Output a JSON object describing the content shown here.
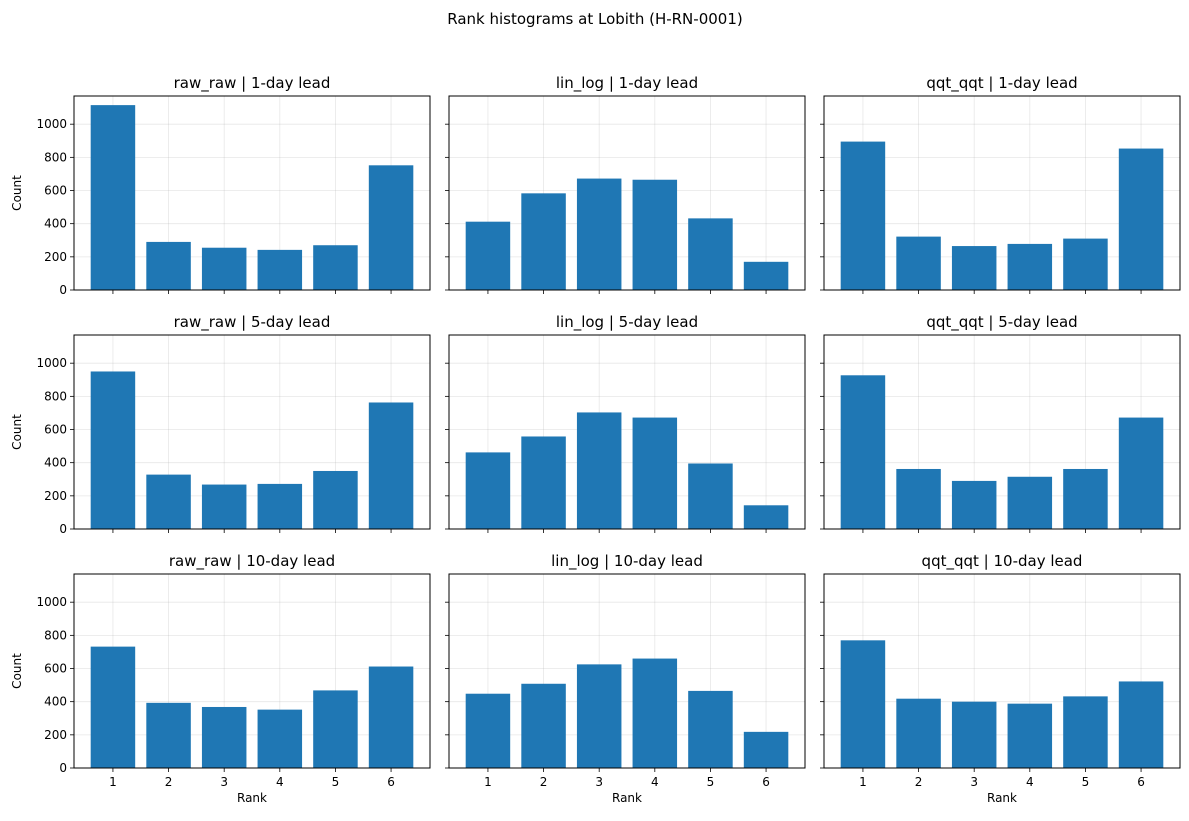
{
  "figure": {
    "suptitle": "Rank histograms at Lobith (H-RN-0001)"
  },
  "style": {
    "bar_color": "#1f77b4",
    "grid_color": "#b0b0b0"
  },
  "chart_data": [
    {
      "type": "bar",
      "title": "raw_raw | 1-day lead",
      "categories": [
        "1",
        "2",
        "3",
        "4",
        "5",
        "6"
      ],
      "values": [
        1115,
        290,
        255,
        242,
        270,
        752
      ],
      "xlabel": "",
      "ylabel": "Count",
      "ylim": [
        0,
        1170
      ],
      "yticks": [
        "0",
        "200",
        "400",
        "600",
        "800",
        "1000"
      ],
      "grid": true
    },
    {
      "type": "bar",
      "title": "lin_log | 1-day lead",
      "categories": [
        "1",
        "2",
        "3",
        "4",
        "5",
        "6"
      ],
      "values": [
        412,
        583,
        672,
        665,
        432,
        170
      ],
      "xlabel": "",
      "ylabel": "",
      "ylim": [
        0,
        1170
      ],
      "yticks": [],
      "grid": true
    },
    {
      "type": "bar",
      "title": "qqt_qqt | 1-day lead",
      "categories": [
        "1",
        "2",
        "3",
        "4",
        "5",
        "6"
      ],
      "values": [
        895,
        322,
        265,
        278,
        310,
        853
      ],
      "xlabel": "",
      "ylabel": "",
      "ylim": [
        0,
        1170
      ],
      "yticks": [],
      "grid": true
    },
    {
      "type": "bar",
      "title": "raw_raw | 5-day lead",
      "categories": [
        "1",
        "2",
        "3",
        "4",
        "5",
        "6"
      ],
      "values": [
        950,
        328,
        268,
        272,
        350,
        763
      ],
      "xlabel": "",
      "ylabel": "Count",
      "ylim": [
        0,
        1170
      ],
      "yticks": [
        "0",
        "200",
        "400",
        "600",
        "800",
        "1000"
      ],
      "grid": true
    },
    {
      "type": "bar",
      "title": "lin_log | 5-day lead",
      "categories": [
        "1",
        "2",
        "3",
        "4",
        "5",
        "6"
      ],
      "values": [
        462,
        558,
        703,
        672,
        395,
        143
      ],
      "xlabel": "",
      "ylabel": "",
      "ylim": [
        0,
        1170
      ],
      "yticks": [],
      "grid": true
    },
    {
      "type": "bar",
      "title": "qqt_qqt | 5-day lead",
      "categories": [
        "1",
        "2",
        "3",
        "4",
        "5",
        "6"
      ],
      "values": [
        927,
        362,
        290,
        315,
        362,
        672
      ],
      "xlabel": "",
      "ylabel": "",
      "ylim": [
        0,
        1170
      ],
      "yticks": [],
      "grid": true
    },
    {
      "type": "bar",
      "title": "raw_raw | 10-day lead",
      "categories": [
        "1",
        "2",
        "3",
        "4",
        "5",
        "6"
      ],
      "values": [
        732,
        393,
        368,
        352,
        468,
        612
      ],
      "xlabel": "Rank",
      "ylabel": "Count",
      "ylim": [
        0,
        1170
      ],
      "yticks": [
        "0",
        "200",
        "400",
        "600",
        "800",
        "1000"
      ],
      "xticks": [
        "1",
        "2",
        "3",
        "4",
        "5",
        "6"
      ],
      "grid": true
    },
    {
      "type": "bar",
      "title": "lin_log | 10-day lead",
      "categories": [
        "1",
        "2",
        "3",
        "4",
        "5",
        "6"
      ],
      "values": [
        448,
        508,
        625,
        660,
        465,
        218
      ],
      "xlabel": "Rank",
      "ylabel": "",
      "ylim": [
        0,
        1170
      ],
      "yticks": [],
      "xticks": [
        "1",
        "2",
        "3",
        "4",
        "5",
        "6"
      ],
      "grid": true
    },
    {
      "type": "bar",
      "title": "qqt_qqt | 10-day lead",
      "categories": [
        "1",
        "2",
        "3",
        "4",
        "5",
        "6"
      ],
      "values": [
        770,
        418,
        400,
        388,
        432,
        522
      ],
      "xlabel": "Rank",
      "ylabel": "",
      "ylim": [
        0,
        1170
      ],
      "yticks": [],
      "xticks": [
        "1",
        "2",
        "3",
        "4",
        "5",
        "6"
      ],
      "grid": true
    }
  ]
}
